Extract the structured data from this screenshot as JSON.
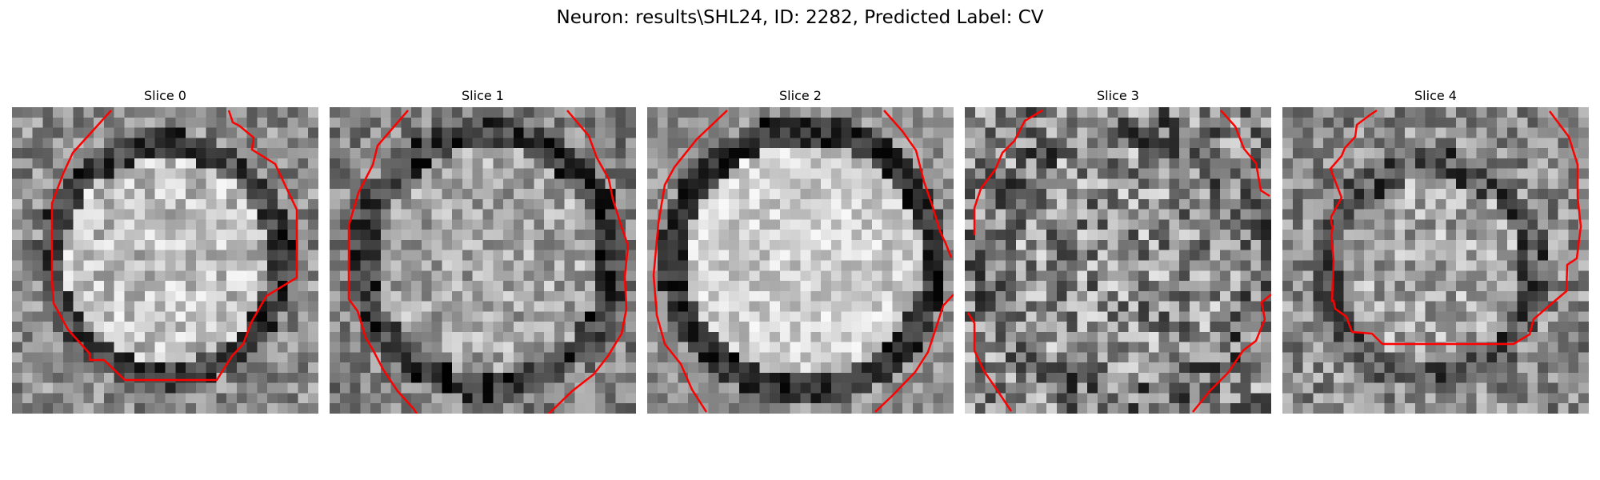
{
  "figure": {
    "title": "Neuron: results\\SHL24, ID: 2282, Predicted Label: CV"
  },
  "panels": [
    {
      "title": "Slice 0"
    },
    {
      "title": "Slice 1"
    },
    {
      "title": "Slice 2"
    },
    {
      "title": "Slice 3"
    },
    {
      "title": "Slice 4"
    }
  ],
  "colors": {
    "contour": "#ff0000",
    "background": "#ffffff",
    "colormap": "grayscale"
  }
}
